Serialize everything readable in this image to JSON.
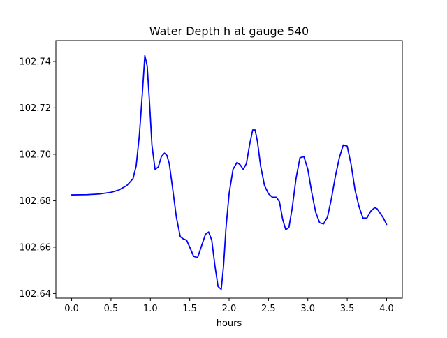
{
  "chart_data": {
    "type": "line",
    "title": "Water Depth h at gauge 540",
    "xlabel": "hours",
    "ylabel": "",
    "xlim": [
      -0.2,
      4.2
    ],
    "ylim": [
      102.638,
      102.749
    ],
    "x_ticks": [
      {
        "value": 0.0,
        "label": "0.0"
      },
      {
        "value": 0.5,
        "label": "0.5"
      },
      {
        "value": 1.0,
        "label": "1.0"
      },
      {
        "value": 1.5,
        "label": "1.5"
      },
      {
        "value": 2.0,
        "label": "2.0"
      },
      {
        "value": 2.5,
        "label": "2.5"
      },
      {
        "value": 3.0,
        "label": "3.0"
      },
      {
        "value": 3.5,
        "label": "3.5"
      },
      {
        "value": 4.0,
        "label": "4.0"
      }
    ],
    "y_ticks": [
      {
        "value": 102.64,
        "label": "102.64"
      },
      {
        "value": 102.66,
        "label": "102.66"
      },
      {
        "value": 102.68,
        "label": "102.68"
      },
      {
        "value": 102.7,
        "label": "102.70"
      },
      {
        "value": 102.72,
        "label": "102.72"
      },
      {
        "value": 102.74,
        "label": "102.74"
      }
    ],
    "grid": false,
    "series": [
      {
        "color": "#0000ff",
        "x": [
          0.0,
          0.2,
          0.35,
          0.5,
          0.6,
          0.7,
          0.78,
          0.82,
          0.86,
          0.9,
          0.93,
          0.96,
          0.99,
          1.02,
          1.06,
          1.1,
          1.14,
          1.18,
          1.21,
          1.24,
          1.28,
          1.33,
          1.38,
          1.42,
          1.46,
          1.5,
          1.55,
          1.6,
          1.65,
          1.7,
          1.74,
          1.78,
          1.82,
          1.86,
          1.9,
          1.93,
          1.96,
          2.0,
          2.05,
          2.1,
          2.14,
          2.18,
          2.22,
          2.26,
          2.3,
          2.33,
          2.36,
          2.4,
          2.45,
          2.5,
          2.55,
          2.6,
          2.64,
          2.68,
          2.72,
          2.76,
          2.8,
          2.85,
          2.9,
          2.95,
          3.0,
          3.05,
          3.1,
          3.15,
          3.2,
          3.25,
          3.3,
          3.35,
          3.4,
          3.45,
          3.5,
          3.55,
          3.6,
          3.65,
          3.7,
          3.75,
          3.8,
          3.85,
          3.88,
          3.92,
          3.96,
          4.0
        ],
        "y": [
          102.6825,
          102.6826,
          102.6829,
          102.6836,
          102.6846,
          102.6865,
          102.6895,
          102.695,
          102.708,
          102.727,
          102.7425,
          102.738,
          102.722,
          102.704,
          102.6935,
          102.6945,
          102.699,
          102.7005,
          102.6995,
          102.696,
          102.686,
          102.673,
          102.6645,
          102.6635,
          102.663,
          102.66,
          102.656,
          102.6555,
          102.6605,
          102.6655,
          102.6665,
          102.663,
          102.652,
          102.643,
          102.6418,
          102.652,
          102.668,
          102.683,
          102.6935,
          102.6965,
          102.6955,
          102.6935,
          102.696,
          102.704,
          102.7105,
          102.7105,
          102.7055,
          102.695,
          102.6865,
          102.683,
          102.6815,
          102.6815,
          102.6795,
          102.672,
          102.6675,
          102.6685,
          102.6765,
          102.6895,
          102.6985,
          102.699,
          102.6935,
          102.6835,
          102.675,
          102.6705,
          102.67,
          102.673,
          102.681,
          102.6905,
          102.6985,
          102.704,
          102.7035,
          102.6955,
          102.6845,
          102.6775,
          102.6725,
          102.6725,
          102.6755,
          102.677,
          102.6765,
          102.6745,
          102.6725,
          102.6698
        ]
      }
    ]
  }
}
